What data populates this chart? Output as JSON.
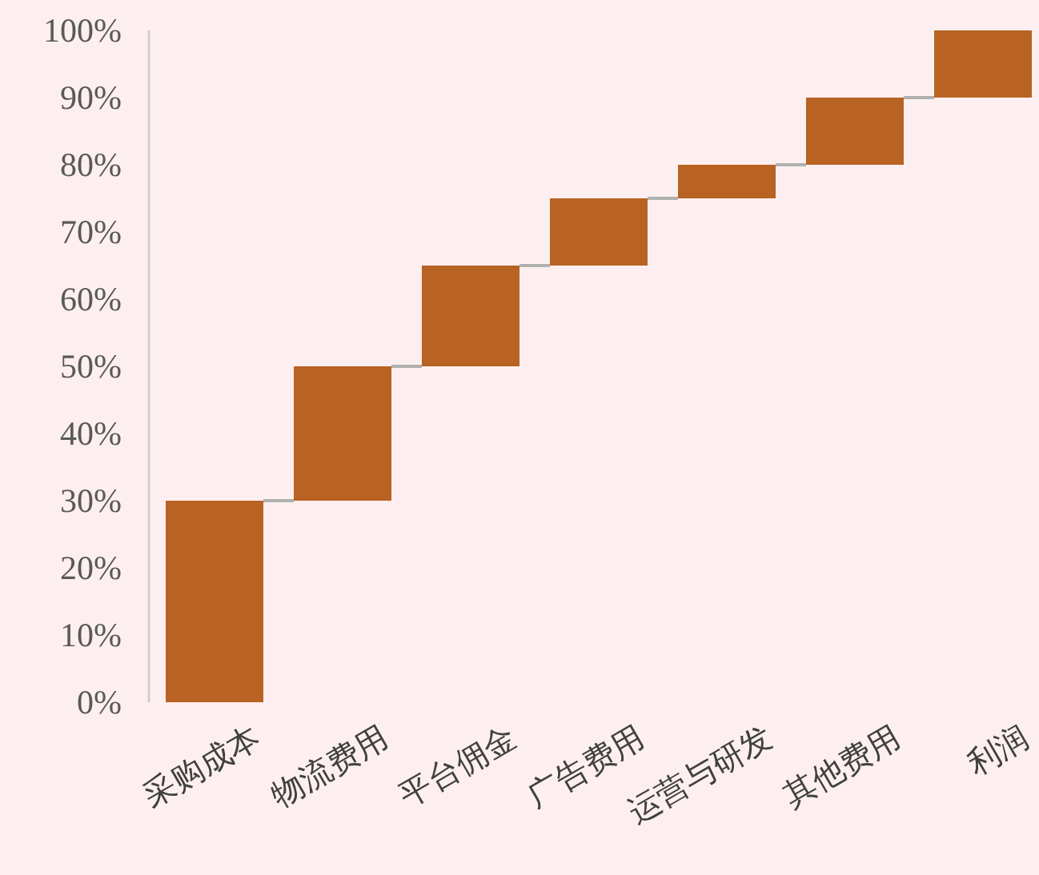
{
  "chart_data": {
    "type": "bar",
    "categories": [
      "采购成本",
      "物流费用",
      "平台佣金",
      "广告费用",
      "运营与研发",
      "其他费用",
      "利润"
    ],
    "values": [
      30,
      20,
      15,
      10,
      5,
      10,
      10
    ],
    "base": [
      0,
      30,
      50,
      65,
      75,
      80,
      90
    ],
    "color": "#b86223",
    "ylim": [
      0,
      100
    ],
    "yticks": [
      {
        "value": 0,
        "label": "0%"
      },
      {
        "value": 10,
        "label": "10%"
      },
      {
        "value": 20,
        "label": "20%"
      },
      {
        "value": 30,
        "label": "30%"
      },
      {
        "value": 40,
        "label": "40%"
      },
      {
        "value": 50,
        "label": "50%"
      },
      {
        "value": 60,
        "label": "60%"
      },
      {
        "value": 70,
        "label": "70%"
      },
      {
        "value": 80,
        "label": "80%"
      },
      {
        "value": 90,
        "label": "90%"
      },
      {
        "value": 100,
        "label": "100%"
      }
    ],
    "grid": false
  }
}
